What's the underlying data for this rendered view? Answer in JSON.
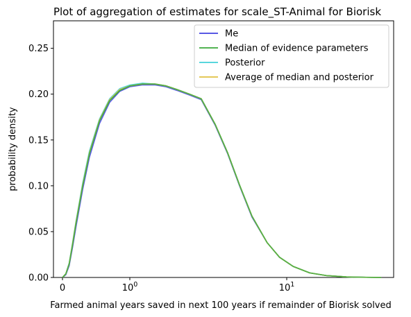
{
  "chart_data": {
    "type": "line",
    "title": "Plot of aggregation of estimates for scale_ST-Animal for Biorisk",
    "xlabel": "Farmed animal years saved in next 100 years if remainder of Biorisk solved",
    "ylabel": "probability density",
    "xscale": "symlog",
    "ylim": [
      0,
      0.28
    ],
    "grid": false,
    "legend_position": "top-right",
    "x_ticks": [
      {
        "value": 0,
        "label": "0"
      },
      {
        "value": 1,
        "label": "10",
        "exp": "0"
      },
      {
        "value": 10,
        "label": "10",
        "exp": "1"
      }
    ],
    "y_ticks": [
      "0.00",
      "0.05",
      "0.10",
      "0.15",
      "0.20",
      "0.25"
    ],
    "series": [
      {
        "name": "Me",
        "color": "#4040e0",
        "x": [
          0,
          0.05,
          0.1,
          0.15,
          0.2,
          0.3,
          0.4,
          0.55,
          0.7,
          0.85,
          1.0,
          1.2,
          1.45,
          1.7,
          2.0,
          2.4,
          2.85,
          3.5,
          4.2,
          5.0,
          6.0,
          7.5,
          9.0,
          11.0,
          14.0,
          18.0,
          24.0,
          32.0,
          40.0
        ],
        "y": [
          0.0,
          0.003,
          0.013,
          0.033,
          0.055,
          0.096,
          0.131,
          0.168,
          0.191,
          0.203,
          0.208,
          0.21,
          0.21,
          0.208,
          0.204,
          0.199,
          0.194,
          0.166,
          0.135,
          0.1,
          0.066,
          0.038,
          0.022,
          0.012,
          0.005,
          0.002,
          0.0006,
          0.0002,
          0.0
        ]
      },
      {
        "name": "Median of evidence parameters",
        "color": "#3aa83a",
        "x": [
          0,
          0.05,
          0.1,
          0.15,
          0.2,
          0.3,
          0.4,
          0.55,
          0.7,
          0.85,
          1.0,
          1.2,
          1.45,
          1.7,
          2.0,
          2.4,
          2.85,
          3.5,
          4.2,
          5.0,
          6.0,
          7.5,
          9.0,
          11.0,
          14.0,
          18.0,
          24.0,
          32.0,
          40.0
        ],
        "y": [
          0.0,
          0.004,
          0.015,
          0.036,
          0.059,
          0.1,
          0.135,
          0.171,
          0.193,
          0.204,
          0.209,
          0.211,
          0.211,
          0.209,
          0.205,
          0.2,
          0.195,
          0.167,
          0.136,
          0.101,
          0.067,
          0.038,
          0.022,
          0.012,
          0.005,
          0.002,
          0.0006,
          0.0002,
          0.0
        ]
      },
      {
        "name": "Posterior",
        "color": "#40d0d8",
        "x": [
          0,
          0.05,
          0.1,
          0.15,
          0.2,
          0.3,
          0.4,
          0.55,
          0.7,
          0.85,
          1.0,
          1.2,
          1.45,
          1.7,
          2.0,
          2.4,
          2.85,
          3.5,
          4.2,
          5.0,
          6.0,
          7.5,
          9.0,
          11.0,
          14.0,
          18.0,
          24.0,
          32.0,
          40.0
        ],
        "y": [
          0.0,
          0.004,
          0.016,
          0.038,
          0.061,
          0.103,
          0.138,
          0.173,
          0.195,
          0.206,
          0.21,
          0.212,
          0.211,
          0.209,
          0.205,
          0.2,
          0.195,
          0.167,
          0.136,
          0.101,
          0.067,
          0.038,
          0.022,
          0.012,
          0.005,
          0.002,
          0.0006,
          0.0002,
          0.0
        ]
      },
      {
        "name": "Average of median and posterior",
        "color": "#e0c040",
        "x": [
          0,
          0.05,
          0.1,
          0.15,
          0.2,
          0.3,
          0.4,
          0.55,
          0.7,
          0.85,
          1.0,
          1.2,
          1.45,
          1.7,
          2.0,
          2.4,
          2.85,
          3.5,
          4.2,
          5.0,
          6.0,
          7.5,
          9.0,
          11.0,
          14.0,
          18.0,
          24.0,
          32.0,
          40.0
        ],
        "y": [
          0.0,
          0.004,
          0.015,
          0.037,
          0.06,
          0.101,
          0.136,
          0.172,
          0.194,
          0.205,
          0.209,
          0.211,
          0.211,
          0.209,
          0.205,
          0.2,
          0.195,
          0.167,
          0.136,
          0.101,
          0.067,
          0.038,
          0.022,
          0.012,
          0.005,
          0.002,
          0.0006,
          0.0002,
          0.0
        ]
      }
    ],
    "overlay_series": {
      "name": "Median of evidence parameters",
      "color": "#3aa83a"
    }
  }
}
